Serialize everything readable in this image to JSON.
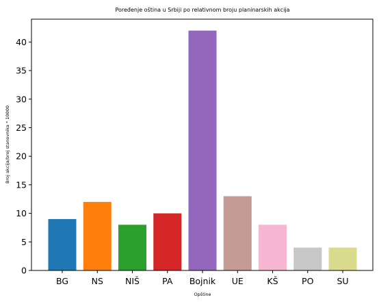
{
  "chart_data": {
    "type": "bar",
    "title": "Poređenje oština u Srbiji po relativnom broju planinarskih akcija",
    "xlabel": "Opštine",
    "ylabel": "Broj akcija/broj stanovnika * 10000",
    "categories": [
      "BG",
      "NS",
      "NIŠ",
      "PA",
      "Bojnik",
      "UE",
      "KŠ",
      "PO",
      "SU"
    ],
    "values": [
      9,
      12,
      8,
      10,
      42,
      13,
      8,
      4,
      4
    ],
    "colors": [
      "#1f77b4",
      "#ff7f0e",
      "#2ca02c",
      "#d62728",
      "#9467bd",
      "#c49c94",
      "#f7b6d2",
      "#c7c7c7",
      "#dbdb8d"
    ],
    "yticks": [
      "0",
      "5",
      "10",
      "15",
      "20",
      "25",
      "30",
      "35",
      "40"
    ],
    "ylim": [
      0,
      44
    ],
    "grid": false,
    "legend": false
  }
}
